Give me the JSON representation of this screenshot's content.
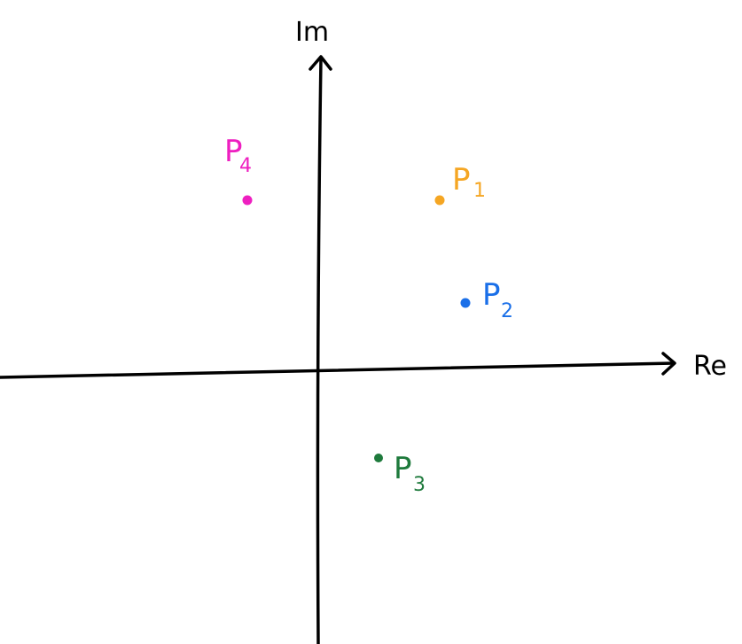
{
  "axes": {
    "x_label": "Re",
    "y_label": "Im",
    "color": "#000000"
  },
  "points": [
    {
      "id": "p1",
      "letter": "P",
      "sub": "1",
      "color": "#f5a623",
      "quadrant": "upper-right"
    },
    {
      "id": "p2",
      "letter": "P",
      "sub": "2",
      "color": "#1a6fe8",
      "quadrant": "upper-right"
    },
    {
      "id": "p3",
      "letter": "P",
      "sub": "3",
      "color": "#1e7a3c",
      "quadrant": "lower-right"
    },
    {
      "id": "p4",
      "letter": "P",
      "sub": "4",
      "color": "#ee1fc0",
      "quadrant": "upper-left"
    }
  ]
}
